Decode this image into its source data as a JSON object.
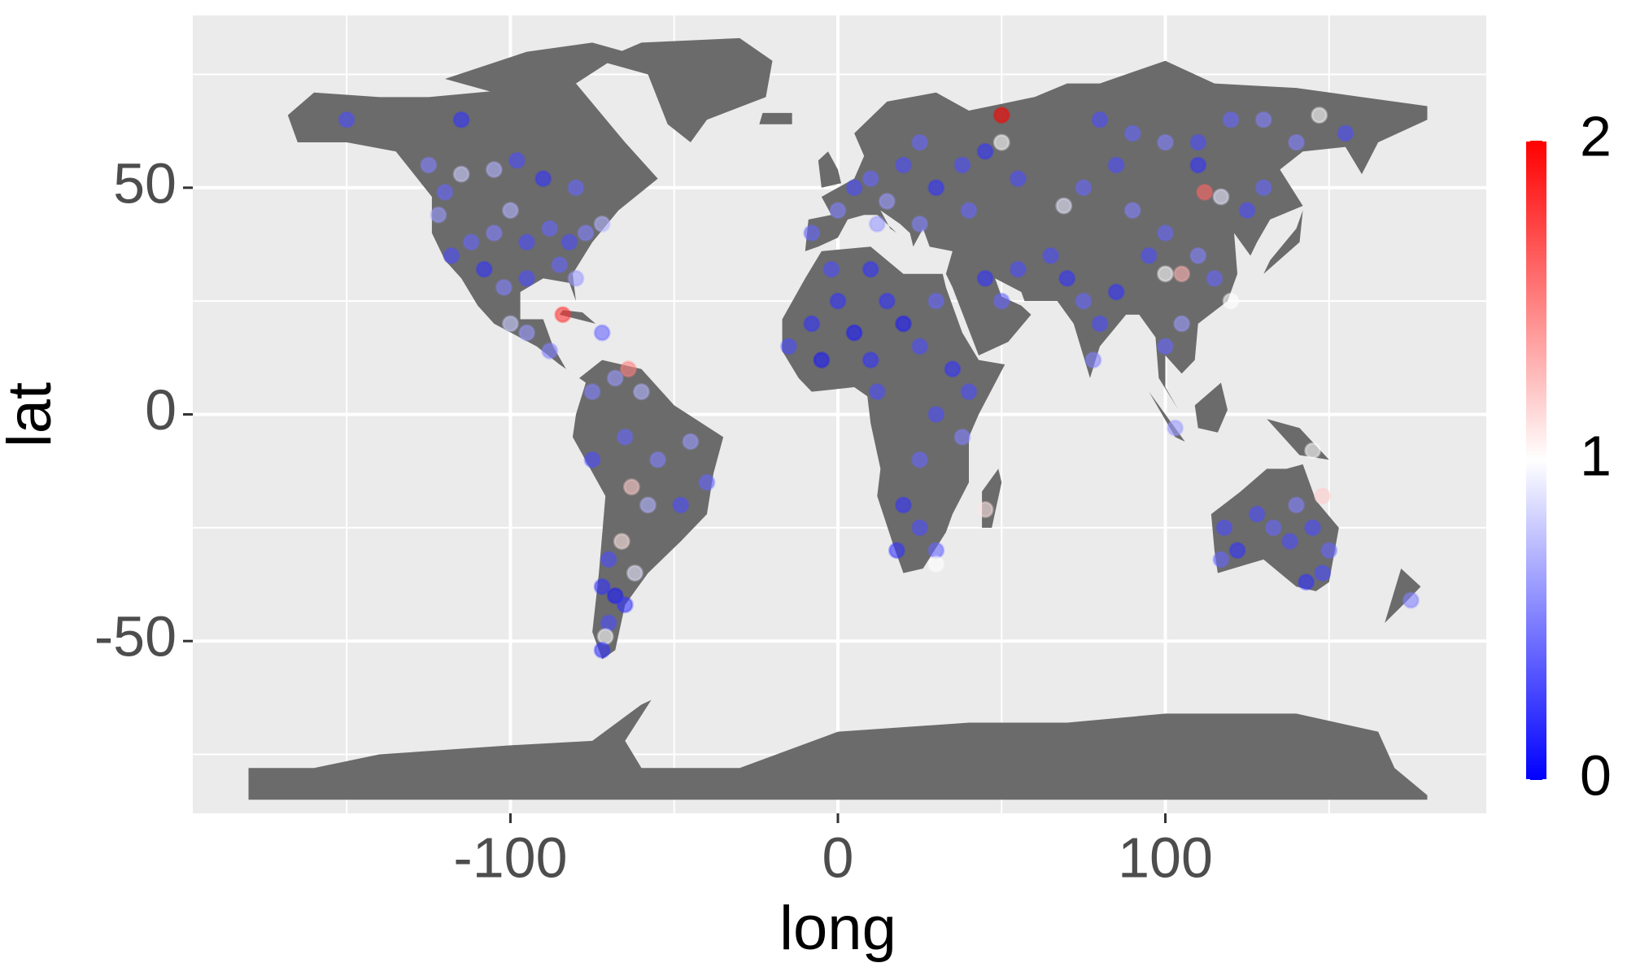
{
  "chart_data": {
    "type": "scatter",
    "x_label": "long",
    "y_label": "lat",
    "xlim": [
      -197,
      198
    ],
    "ylim": [
      -88,
      88
    ],
    "xticks": [
      -100,
      0,
      100
    ],
    "yticks": [
      -50,
      0,
      50
    ],
    "grid": true,
    "colorbar": {
      "lim": [
        0,
        2
      ],
      "ticks": [
        0,
        1,
        2
      ],
      "colors": [
        "#0000ff",
        "#ffffff",
        "#ff0000"
      ]
    },
    "x": [
      -150,
      -115,
      -125,
      -120,
      -115,
      -105,
      -98,
      -90,
      -80,
      -122,
      -118,
      -112,
      -105,
      -100,
      -95,
      -88,
      -82,
      -77,
      -72,
      -85,
      -95,
      -80,
      -102,
      -108,
      -100,
      -95,
      -88,
      -84,
      -64,
      -72,
      -75,
      -68,
      -60,
      -75,
      -65,
      -55,
      -45,
      -40,
      -48,
      -58,
      -63,
      -66,
      -62,
      -70,
      -72,
      -68,
      -65,
      -70,
      -71,
      -72,
      -8,
      0,
      5,
      10,
      15,
      20,
      25,
      30,
      38,
      45,
      50,
      50,
      55,
      40,
      25,
      12,
      -15,
      -8,
      -5,
      0,
      5,
      10,
      15,
      20,
      25,
      30,
      35,
      40,
      30,
      25,
      38,
      20,
      25,
      30,
      18,
      30,
      45,
      12,
      -2,
      10,
      45,
      55,
      50,
      65,
      70,
      75,
      80,
      78,
      85,
      69,
      75,
      85,
      90,
      100,
      95,
      100,
      105,
      110,
      115,
      120,
      100,
      105,
      112,
      117,
      125,
      130,
      110,
      100,
      90,
      80,
      120,
      140,
      147,
      155,
      130,
      110,
      103,
      145,
      118,
      122,
      117,
      128,
      133,
      138,
      140,
      145,
      150,
      148,
      143,
      148,
      175
    ],
    "y": [
      65,
      65,
      55,
      49,
      53,
      54,
      56,
      52,
      50,
      44,
      35,
      38,
      40,
      45,
      38,
      41,
      38,
      40,
      42,
      33,
      30,
      30,
      28,
      32,
      20,
      18,
      14,
      22,
      10,
      18,
      5,
      8,
      5,
      -10,
      -5,
      -10,
      -6,
      -15,
      -20,
      -20,
      -16,
      -28,
      -35,
      -32,
      -38,
      -40,
      -42,
      -46,
      -49,
      -52,
      40,
      45,
      50,
      52,
      47,
      55,
      60,
      50,
      55,
      58,
      66,
      60,
      52,
      45,
      42,
      42,
      15,
      20,
      12,
      25,
      18,
      12,
      25,
      20,
      15,
      25,
      10,
      5,
      0,
      -10,
      -5,
      -20,
      -25,
      -30,
      -30,
      -33,
      -21,
      5,
      32,
      32,
      30,
      32,
      25,
      35,
      30,
      25,
      20,
      12,
      27,
      46,
      50,
      55,
      45,
      40,
      35,
      31,
      31,
      35,
      30,
      25,
      15,
      20,
      49,
      48,
      45,
      50,
      60,
      60,
      62,
      65,
      65,
      60,
      66,
      62,
      65,
      55,
      -3,
      -8,
      -25,
      -30,
      -32,
      -22,
      -25,
      -28,
      -20,
      -25,
      -30,
      -35,
      -37,
      -18,
      -41
    ],
    "values": [
      0.3,
      0.2,
      0.5,
      0.4,
      0.8,
      0.7,
      0.3,
      0.2,
      0.4,
      0.6,
      0.3,
      0.4,
      0.5,
      0.7,
      0.3,
      0.4,
      0.3,
      0.5,
      0.7,
      0.4,
      0.3,
      0.6,
      0.5,
      0.2,
      0.8,
      0.6,
      0.5,
      1.8,
      1.5,
      0.4,
      0.5,
      0.6,
      0.7,
      0.3,
      0.4,
      0.5,
      0.6,
      0.4,
      0.3,
      0.7,
      1.2,
      1.1,
      0.9,
      0.3,
      0.2,
      0.1,
      0.2,
      0.3,
      1.0,
      0.2,
      0.4,
      0.5,
      0.3,
      0.4,
      0.6,
      0.3,
      0.4,
      0.2,
      0.3,
      0.2,
      2.0,
      1.0,
      0.3,
      0.4,
      0.5,
      0.6,
      0.3,
      0.2,
      0.1,
      0.2,
      0.1,
      0.2,
      0.2,
      0.1,
      0.3,
      0.4,
      0.2,
      0.3,
      0.3,
      0.4,
      0.5,
      0.2,
      0.3,
      0.4,
      0.2,
      1.0,
      1.1,
      0.3,
      0.3,
      0.2,
      0.2,
      0.3,
      0.4,
      0.3,
      0.2,
      0.4,
      0.3,
      0.5,
      0.2,
      0.9,
      0.4,
      0.3,
      0.5,
      0.4,
      0.3,
      1.0,
      1.3,
      0.5,
      0.4,
      1.0,
      0.4,
      0.6,
      1.6,
      0.9,
      0.3,
      0.4,
      0.3,
      0.5,
      0.4,
      0.3,
      0.4,
      0.5,
      1.0,
      0.3,
      0.5,
      0.2,
      0.6,
      1.0,
      0.3,
      0.2,
      0.4,
      0.3,
      0.4,
      0.3,
      0.5,
      0.3,
      0.4,
      0.3,
      0.2,
      1.2,
      0.5
    ]
  }
}
